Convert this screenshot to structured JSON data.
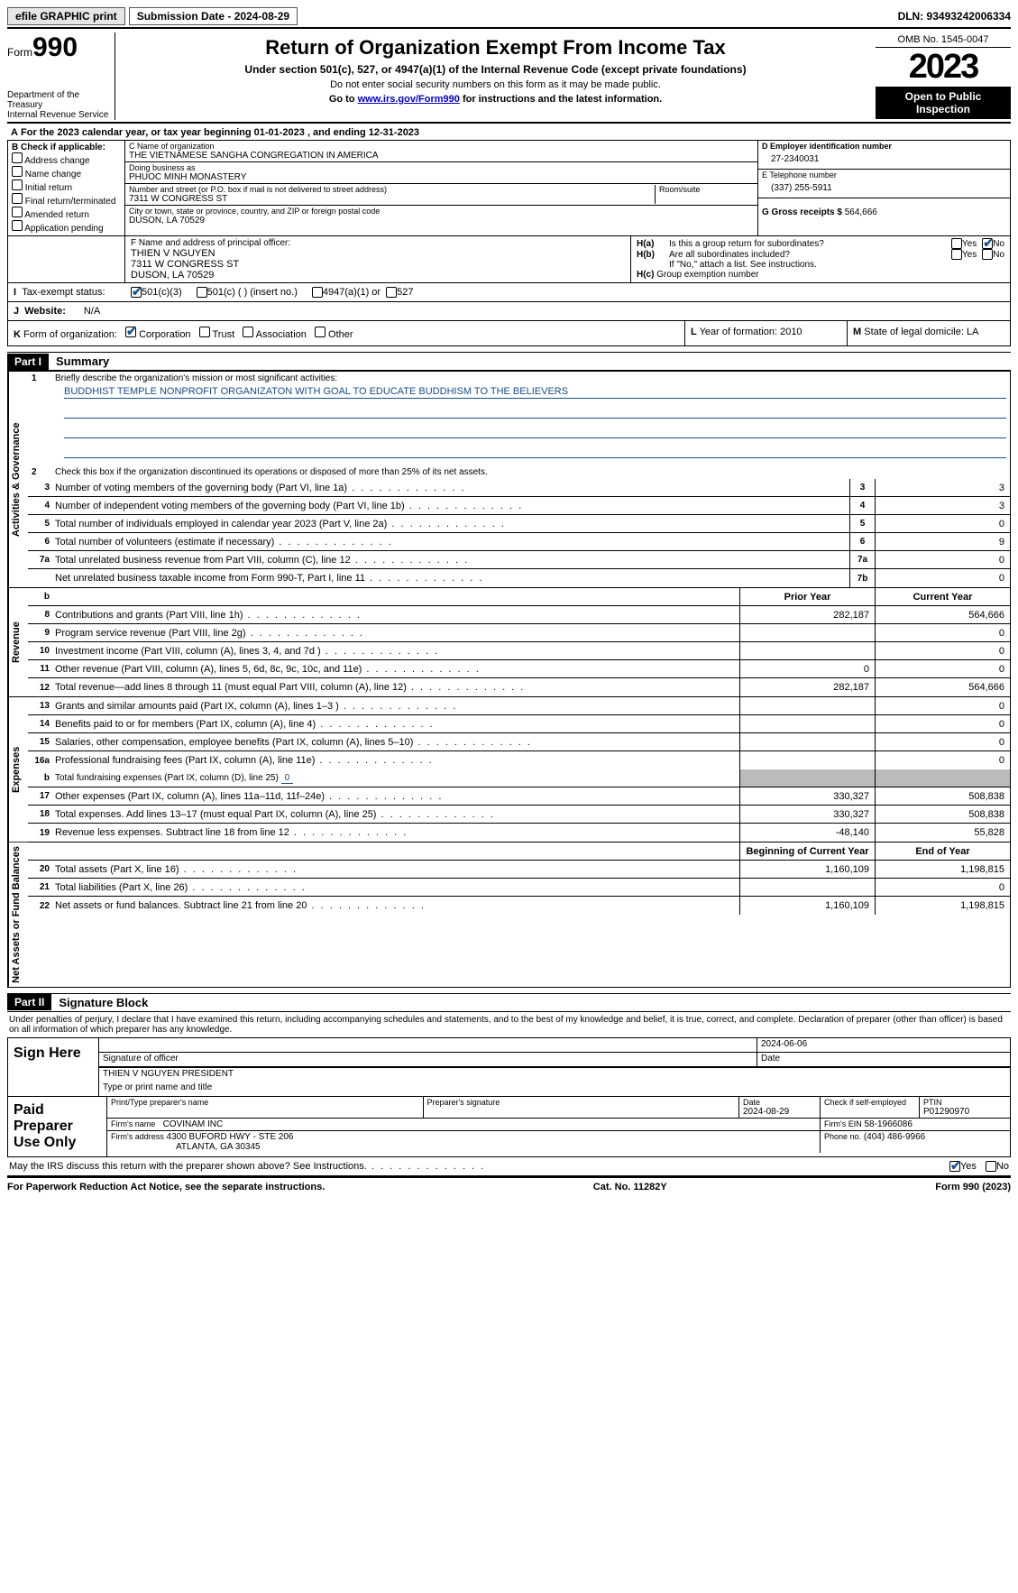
{
  "topbar": {
    "efile": "efile GRAPHIC print",
    "submission_label": "Submission Date - 2024-08-29",
    "dln": "DLN: 93493242006334"
  },
  "header": {
    "form_word": "Form",
    "form_no": "990",
    "dept1": "Department of the Treasury",
    "dept2": "Internal Revenue Service",
    "title": "Return of Organization Exempt From Income Tax",
    "subtitle": "Under section 501(c), 527, or 4947(a)(1) of the Internal Revenue Code (except private foundations)",
    "note1": "Do not enter social security numbers on this form as it may be made public.",
    "note2_pre": "Go to ",
    "note2_link": "www.irs.gov/Form990",
    "note2_post": " for instructions and the latest information.",
    "omb": "OMB No. 1545-0047",
    "year": "2023",
    "open": "Open to Public Inspection"
  },
  "period": "For the 2023 calendar year, or tax year beginning 01-01-2023   , and ending 12-31-2023",
  "B": {
    "heading": "B Check if applicable:",
    "items": [
      "Address change",
      "Name change",
      "Initial return",
      "Final return/terminated",
      "Amended return",
      "Application pending"
    ]
  },
  "C": {
    "name_label": "C Name of organization",
    "name": "THE VIETNAMESE SANGHA CONGREGATION IN AMERICA",
    "dba_label": "Doing business as",
    "dba": "PHUOC MINH MONASTERY",
    "street_label": "Number and street (or P.O. box if mail is not delivered to street address)",
    "room_label": "Room/suite",
    "street": "7311 W CONGRESS ST",
    "city_label": "City or town, state or province, country, and ZIP or foreign postal code",
    "city": "DUSON, LA  70529"
  },
  "D": {
    "label": "D Employer identification number",
    "value": "27-2340031"
  },
  "E": {
    "label": "E Telephone number",
    "value": "(337) 255-5911"
  },
  "G": {
    "label": "G Gross receipts $",
    "value": "564,666"
  },
  "F": {
    "label": "F  Name and address of principal officer:",
    "name": "THIEN V NGUYEN",
    "street": "7311 W CONGRESS ST",
    "city": "DUSON, LA  70529"
  },
  "H": {
    "a": "Is this a group return for subordinates?",
    "b": "Are all subordinates included?",
    "b_note": "If \"No,\" attach a list. See instructions.",
    "c": "Group exemption number"
  },
  "I": {
    "label": "Tax-exempt status:",
    "o1": "501(c)(3)",
    "o2": "501(c) (  ) (insert no.)",
    "o3": "4947(a)(1) or",
    "o4": "527"
  },
  "J": {
    "label": "Website:",
    "value": "N/A"
  },
  "K": {
    "label": "Form of organization:",
    "o1": "Corporation",
    "o2": "Trust",
    "o3": "Association",
    "o4": "Other"
  },
  "L": {
    "label": "Year of formation:",
    "value": "2010"
  },
  "M": {
    "label": "State of legal domicile:",
    "value": "LA"
  },
  "partI": {
    "tag": "Part I",
    "title": "Summary"
  },
  "summary": {
    "line1_label": "Briefly describe the organization's mission or most significant activities:",
    "mission": "BUDDHIST TEMPLE NONPROFIT ORGANIZATON WITH GOAL TO EDUCATE BUDDHISM TO THE BELIEVERS",
    "line2": "Check this box      if the organization discontinued its operations or disposed of more than 25% of its net assets.",
    "lines_gov": [
      {
        "n": "3",
        "d": "Number of voting members of the governing body (Part VI, line 1a)",
        "box": "3",
        "v": "3"
      },
      {
        "n": "4",
        "d": "Number of independent voting members of the governing body (Part VI, line 1b)",
        "box": "4",
        "v": "3"
      },
      {
        "n": "5",
        "d": "Total number of individuals employed in calendar year 2023 (Part V, line 2a)",
        "box": "5",
        "v": "0"
      },
      {
        "n": "6",
        "d": "Total number of volunteers (estimate if necessary)",
        "box": "6",
        "v": "9"
      },
      {
        "n": "7a",
        "d": "Total unrelated business revenue from Part VIII, column (C), line 12",
        "box": "7a",
        "v": "0"
      },
      {
        "n": "",
        "d": "Net unrelated business taxable income from Form 990-T, Part I, line 11",
        "box": "7b",
        "v": "0"
      }
    ],
    "head_prior": "Prior Year",
    "head_current": "Current Year",
    "lines_rev": [
      {
        "n": "8",
        "d": "Contributions and grants (Part VIII, line 1h)",
        "p": "282,187",
        "c": "564,666"
      },
      {
        "n": "9",
        "d": "Program service revenue (Part VIII, line 2g)",
        "p": "",
        "c": "0"
      },
      {
        "n": "10",
        "d": "Investment income (Part VIII, column (A), lines 3, 4, and 7d )",
        "p": "",
        "c": "0"
      },
      {
        "n": "11",
        "d": "Other revenue (Part VIII, column (A), lines 5, 6d, 8c, 9c, 10c, and 11e)",
        "p": "0",
        "c": "0"
      },
      {
        "n": "12",
        "d": "Total revenue—add lines 8 through 11 (must equal Part VIII, column (A), line 12)",
        "p": "282,187",
        "c": "564,666"
      }
    ],
    "lines_exp": [
      {
        "n": "13",
        "d": "Grants and similar amounts paid (Part IX, column (A), lines 1–3 )",
        "p": "",
        "c": "0"
      },
      {
        "n": "14",
        "d": "Benefits paid to or for members (Part IX, column (A), line 4)",
        "p": "",
        "c": "0"
      },
      {
        "n": "15",
        "d": "Salaries, other compensation, employee benefits (Part IX, column (A), lines 5–10)",
        "p": "",
        "c": "0"
      },
      {
        "n": "16a",
        "d": "Professional fundraising fees (Part IX, column (A), line 11e)",
        "p": "",
        "c": "0"
      }
    ],
    "line_b": {
      "n": "b",
      "d": "Total fundraising expenses (Part IX, column (D), line 25)",
      "u": "0"
    },
    "lines_exp2": [
      {
        "n": "17",
        "d": "Other expenses (Part IX, column (A), lines 11a–11d, 11f–24e)",
        "p": "330,327",
        "c": "508,838"
      },
      {
        "n": "18",
        "d": "Total expenses. Add lines 13–17 (must equal Part IX, column (A), line 25)",
        "p": "330,327",
        "c": "508,838"
      },
      {
        "n": "19",
        "d": "Revenue less expenses. Subtract line 18 from line 12",
        "p": "-48,140",
        "c": "55,828"
      }
    ],
    "head_begin": "Beginning of Current Year",
    "head_end": "End of Year",
    "lines_net": [
      {
        "n": "20",
        "d": "Total assets (Part X, line 16)",
        "p": "1,160,109",
        "c": "1,198,815"
      },
      {
        "n": "21",
        "d": "Total liabilities (Part X, line 26)",
        "p": "",
        "c": "0"
      },
      {
        "n": "22",
        "d": "Net assets or fund balances. Subtract line 21 from line 20",
        "p": "1,160,109",
        "c": "1,198,815"
      }
    ],
    "vlabels": {
      "gov": "Activities & Governance",
      "rev": "Revenue",
      "exp": "Expenses",
      "net": "Net Assets or Fund Balances"
    }
  },
  "partII": {
    "tag": "Part II",
    "title": "Signature Block"
  },
  "penalties": "Under penalties of perjury, I declare that I have examined this return, including accompanying schedules and statements, and to the best of my knowledge and belief, it is true, correct, and complete. Declaration of preparer (other than officer) is based on all information of which preparer has any knowledge.",
  "sign": {
    "here": "Sign Here",
    "date": "2024-06-06",
    "sig_label": "Signature of officer",
    "date_label": "Date",
    "name": "THIEN V NGUYEN PRESIDENT",
    "name_label": "Type or print name and title"
  },
  "paid": {
    "title": "Paid Preparer Use Only",
    "h1": "Print/Type preparer's name",
    "h2": "Preparer's signature",
    "h3_label": "Date",
    "h3": "2024-08-29",
    "h4": "Check      if self-employed",
    "h5_label": "PTIN",
    "h5": "P01290970",
    "firm_label": "Firm's name",
    "firm": "COVINAM INC",
    "ein_label": "Firm's EIN",
    "ein": "58-1966086",
    "addr_label": "Firm's address",
    "addr1": "4300 BUFORD HWY - STE 206",
    "addr2": "ATLANTA, GA  30345",
    "phone_label": "Phone no.",
    "phone": "(404) 486-9966"
  },
  "discuss": "May the IRS discuss this return with the preparer shown above? See Instructions.",
  "footer": {
    "left": "For Paperwork Reduction Act Notice, see the separate instructions.",
    "mid": "Cat. No. 11282Y",
    "right": "Form 990 (2023)"
  },
  "yes": "Yes",
  "no": "No"
}
